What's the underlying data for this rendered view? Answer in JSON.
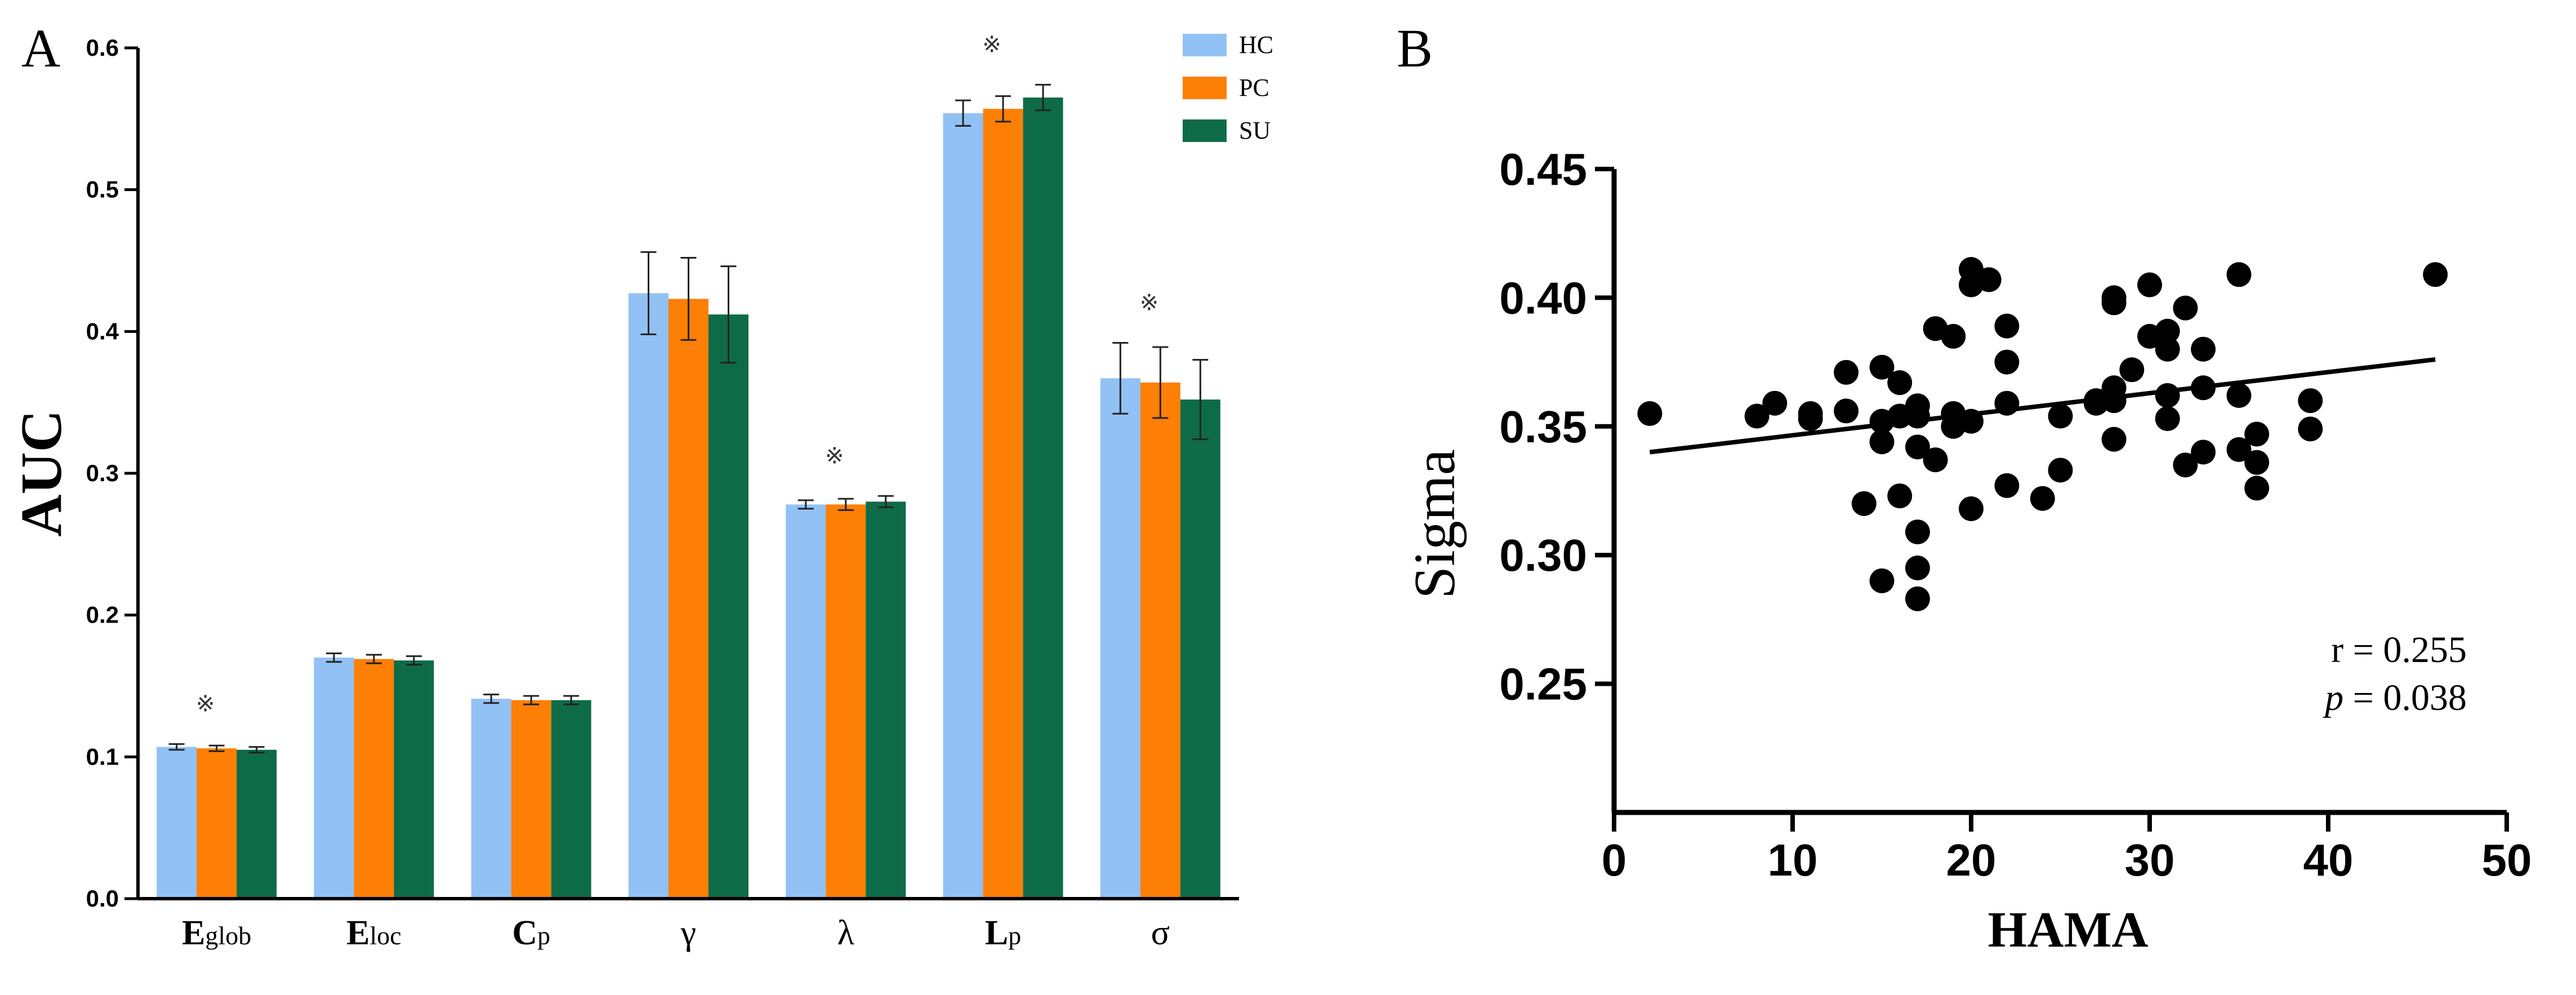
{
  "panel_a_label": "A",
  "panel_b_label": "B",
  "colors": {
    "HC": "#92c1f5",
    "PC": "#fd7f05",
    "SU": "#0e6b47",
    "axis": "#000000",
    "point": "#000000"
  },
  "chart_data": [
    {
      "type": "bar",
      "panel": "A",
      "ylabel": "AUC",
      "xlabel": "",
      "ylim": [
        0,
        0.6
      ],
      "y_ticks": [
        "0.0",
        "0.1",
        "0.2",
        "0.3",
        "0.4",
        "0.5",
        "0.6"
      ],
      "legend_position": "top-right",
      "categories": [
        {
          "main": "E",
          "sub": "glob",
          "bold": true
        },
        {
          "main": "E",
          "sub": "loc",
          "bold": true
        },
        {
          "main": "C",
          "sub": "p",
          "bold": true
        },
        {
          "main": "γ",
          "sub": "",
          "bold": false
        },
        {
          "main": "λ",
          "sub": "",
          "bold": false
        },
        {
          "main": "L",
          "sub": "p",
          "bold": true
        },
        {
          "main": "σ",
          "sub": "",
          "bold": false
        }
      ],
      "series": [
        {
          "name": "HC",
          "values": [
            0.107,
            0.17,
            0.141,
            0.427,
            0.278,
            0.554,
            0.367
          ],
          "errors": [
            0.002,
            0.003,
            0.003,
            0.029,
            0.003,
            0.009,
            0.025
          ]
        },
        {
          "name": "PC",
          "values": [
            0.106,
            0.169,
            0.14,
            0.423,
            0.278,
            0.557,
            0.364
          ],
          "errors": [
            0.002,
            0.003,
            0.003,
            0.029,
            0.004,
            0.009,
            0.025
          ]
        },
        {
          "name": "SU",
          "values": [
            0.105,
            0.168,
            0.14,
            0.412,
            0.28,
            0.565,
            0.352
          ],
          "errors": [
            0.002,
            0.003,
            0.003,
            0.034,
            0.004,
            0.009,
            0.028
          ]
        }
      ],
      "significance_marker": "※",
      "significant_categories": [
        0,
        4,
        5,
        6
      ]
    },
    {
      "type": "scatter",
      "panel": "B",
      "xlabel": "HAMA",
      "ylabel": "Sigma",
      "xlim": [
        0,
        50
      ],
      "ylim": [
        0.2,
        0.45
      ],
      "x_ticks": [
        "0",
        "10",
        "20",
        "30",
        "40",
        "50"
      ],
      "y_ticks": [
        "0.25",
        "0.30",
        "0.35",
        "0.40",
        "0.45"
      ],
      "stats": {
        "r_label": "r = 0.255",
        "p_symbol": "p",
        "p_rest": " = 0.038"
      },
      "fit_line": {
        "x": [
          2,
          46
        ],
        "y": [
          0.34,
          0.376
        ]
      },
      "points": [
        [
          2,
          0.355
        ],
        [
          8,
          0.354
        ],
        [
          9,
          0.359
        ],
        [
          11,
          0.353
        ],
        [
          11,
          0.355
        ],
        [
          13,
          0.356
        ],
        [
          13,
          0.371
        ],
        [
          14,
          0.32
        ],
        [
          15,
          0.29
        ],
        [
          15,
          0.344
        ],
        [
          15,
          0.352
        ],
        [
          15,
          0.373
        ],
        [
          16,
          0.323
        ],
        [
          16,
          0.354
        ],
        [
          16,
          0.367
        ],
        [
          17,
          0.283
        ],
        [
          17,
          0.295
        ],
        [
          17,
          0.309
        ],
        [
          17,
          0.342
        ],
        [
          17,
          0.354
        ],
        [
          17,
          0.358
        ],
        [
          18,
          0.337
        ],
        [
          18,
          0.388
        ],
        [
          19,
          0.35
        ],
        [
          19,
          0.355
        ],
        [
          19,
          0.385
        ],
        [
          20,
          0.318
        ],
        [
          20,
          0.352
        ],
        [
          20,
          0.405
        ],
        [
          20,
          0.411
        ],
        [
          21,
          0.407
        ],
        [
          22,
          0.327
        ],
        [
          22,
          0.359
        ],
        [
          22,
          0.375
        ],
        [
          22,
          0.389
        ],
        [
          24,
          0.322
        ],
        [
          25,
          0.333
        ],
        [
          25,
          0.354
        ],
        [
          27,
          0.359
        ],
        [
          27,
          0.36
        ],
        [
          28,
          0.345
        ],
        [
          28,
          0.36
        ],
        [
          28,
          0.365
        ],
        [
          28,
          0.398
        ],
        [
          28,
          0.4
        ],
        [
          29,
          0.372
        ],
        [
          30,
          0.385
        ],
        [
          30,
          0.405
        ],
        [
          31,
          0.353
        ],
        [
          31,
          0.362
        ],
        [
          31,
          0.38
        ],
        [
          31,
          0.387
        ],
        [
          32,
          0.335
        ],
        [
          32,
          0.396
        ],
        [
          33,
          0.34
        ],
        [
          33,
          0.365
        ],
        [
          33,
          0.38
        ],
        [
          35,
          0.341
        ],
        [
          35,
          0.362
        ],
        [
          35,
          0.409
        ],
        [
          36,
          0.326
        ],
        [
          36,
          0.336
        ],
        [
          36,
          0.347
        ],
        [
          39,
          0.349
        ],
        [
          39,
          0.36
        ],
        [
          46,
          0.409
        ]
      ]
    }
  ]
}
